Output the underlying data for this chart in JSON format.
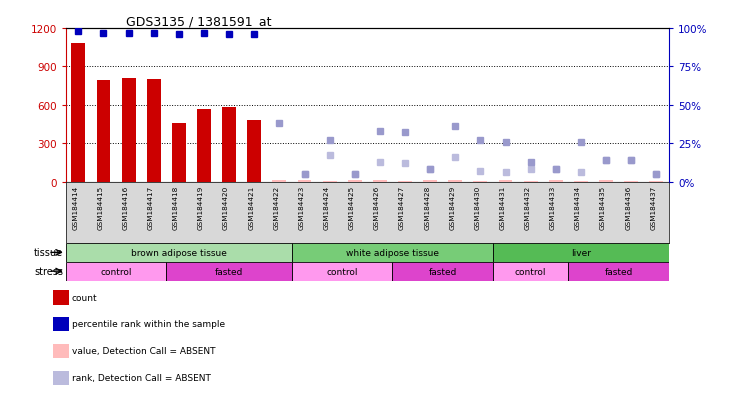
{
  "title": "GDS3135 / 1381591_at",
  "samples": [
    "GSM184414",
    "GSM184415",
    "GSM184416",
    "GSM184417",
    "GSM184418",
    "GSM184419",
    "GSM184420",
    "GSM184421",
    "GSM184422",
    "GSM184423",
    "GSM184424",
    "GSM184425",
    "GSM184426",
    "GSM184427",
    "GSM184428",
    "GSM184429",
    "GSM184430",
    "GSM184431",
    "GSM184432",
    "GSM184433",
    "GSM184434",
    "GSM184435",
    "GSM184436",
    "GSM184437"
  ],
  "count_values": [
    1080,
    790,
    810,
    800,
    460,
    570,
    580,
    480,
    15,
    12,
    8,
    10,
    12,
    8,
    10,
    12,
    8,
    10,
    8,
    10,
    8,
    10,
    8,
    8
  ],
  "count_absent": [
    false,
    false,
    false,
    false,
    false,
    false,
    false,
    false,
    true,
    true,
    true,
    true,
    true,
    true,
    true,
    true,
    true,
    true,
    true,
    true,
    true,
    true,
    true,
    true
  ],
  "percentile_values": [
    98,
    97,
    97,
    97,
    96,
    97,
    96,
    96,
    38,
    5,
    27,
    5,
    33,
    32,
    8,
    36,
    27,
    26,
    13,
    8,
    26,
    14,
    14,
    5
  ],
  "percentile_absent_flag": [
    false,
    false,
    false,
    false,
    false,
    false,
    false,
    false,
    true,
    true,
    true,
    true,
    true,
    true,
    true,
    true,
    true,
    true,
    true,
    true,
    true,
    true,
    true,
    true
  ],
  "rank_absent_idx": [
    9,
    10,
    11,
    12,
    13,
    14,
    15,
    16,
    17,
    18,
    19,
    20,
    21,
    22,
    23
  ],
  "rank_absent_vals": [
    5,
    17,
    5,
    13,
    12,
    8,
    16,
    7,
    6,
    8,
    8,
    6,
    14,
    14,
    5
  ],
  "tissue_groups": [
    {
      "label": "brown adipose tissue",
      "start": 0,
      "end": 9,
      "color": "#AADDAA"
    },
    {
      "label": "white adipose tissue",
      "start": 9,
      "end": 17,
      "color": "#77CC77"
    },
    {
      "label": "liver",
      "start": 17,
      "end": 24,
      "color": "#55BB55"
    }
  ],
  "stress_groups": [
    {
      "label": "control",
      "start": 0,
      "end": 4,
      "color": "#FF99EE"
    },
    {
      "label": "fasted",
      "start": 4,
      "end": 9,
      "color": "#DD44CC"
    },
    {
      "label": "control",
      "start": 9,
      "end": 13,
      "color": "#FF99EE"
    },
    {
      "label": "fasted",
      "start": 13,
      "end": 17,
      "color": "#DD44CC"
    },
    {
      "label": "control",
      "start": 17,
      "end": 20,
      "color": "#FF99EE"
    },
    {
      "label": "fasted",
      "start": 20,
      "end": 24,
      "color": "#DD44CC"
    }
  ],
  "ylim_left": [
    0,
    1200
  ],
  "ylim_right": [
    0,
    100
  ],
  "yticks_left": [
    0,
    300,
    600,
    900,
    1200
  ],
  "yticks_right": [
    0,
    25,
    50,
    75,
    100
  ],
  "bar_color": "#CC0000",
  "bar_absent_color": "#FFBBBB",
  "dot_color": "#0000BB",
  "dot_absent_pct_color": "#9999CC",
  "dot_absent_rank_color": "#BBBBDD",
  "legend_items": [
    {
      "label": "count",
      "color": "#CC0000"
    },
    {
      "label": "percentile rank within the sample",
      "color": "#0000BB"
    },
    {
      "label": "value, Detection Call = ABSENT",
      "color": "#FFBBBB"
    },
    {
      "label": "rank, Detection Call = ABSENT",
      "color": "#BBBBDD"
    }
  ]
}
